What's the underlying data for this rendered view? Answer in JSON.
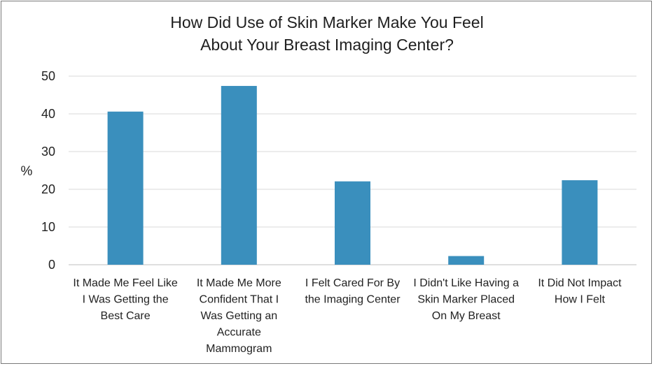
{
  "chart_data": {
    "type": "bar",
    "title_lines": [
      "How Did Use of Skin Marker Make You Feel",
      "About Your Breast Imaging Center?"
    ],
    "ylabel": "%",
    "xlabel": "",
    "ylim": [
      0,
      50
    ],
    "yticks": [
      "0",
      "10",
      "20",
      "30",
      "40",
      "50"
    ],
    "grid": true,
    "legend": "none",
    "bar_color": "#3a8fbd",
    "grid_color": "#d9d9d9",
    "categories": [
      [
        "It Made Me Feel Like",
        "I Was Getting the",
        "Best Care"
      ],
      [
        "It Made Me More",
        "Confident That I",
        "Was Getting an",
        "Accurate",
        "Mammogram"
      ],
      [
        "I Felt Cared For By",
        "the Imaging Center"
      ],
      [
        "I Didn't Like Having a",
        "Skin Marker Placed",
        "On My Breast"
      ],
      [
        "It Did Not Impact",
        "How I Felt"
      ]
    ],
    "values": [
      40.6,
      47.4,
      22.1,
      2.3,
      22.4
    ]
  }
}
